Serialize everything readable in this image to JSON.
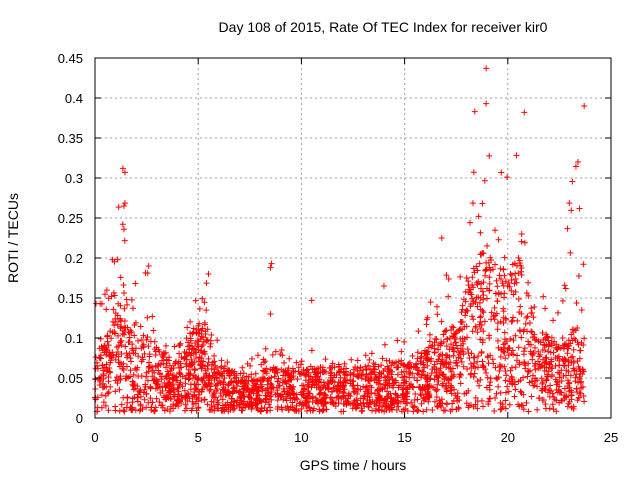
{
  "chart_data": {
    "type": "scatter",
    "title": "Day 108 of 2015, Rate Of TEC Index for receiver kir0",
    "xlabel": "GPS time / hours",
    "ylabel": "ROTI / TECUs",
    "xlim": [
      0,
      25
    ],
    "ylim": [
      0,
      0.45
    ],
    "xticks": [
      0,
      5,
      10,
      15,
      20,
      25
    ],
    "yticks": [
      0,
      0.05,
      0.1,
      0.15,
      0.2,
      0.25,
      0.3,
      0.35,
      0.4,
      0.45
    ],
    "xtick_labels": [
      "0",
      "5",
      "10",
      "15",
      "20",
      "25"
    ],
    "ytick_labels": [
      "0",
      "0.05",
      "0.1",
      "0.15",
      "0.2",
      "0.25",
      "0.3",
      "0.35",
      "0.4",
      "0.45"
    ],
    "grid": true,
    "marker": "+",
    "color": "#ff0000",
    "series": [
      {
        "name": "ROTI",
        "envelope": [
          {
            "x": 0.0,
            "base": 0.045,
            "max": 0.14
          },
          {
            "x": 0.5,
            "base": 0.055,
            "max": 0.16
          },
          {
            "x": 1.0,
            "base": 0.08,
            "max": 0.24
          },
          {
            "x": 1.4,
            "base": 0.1,
            "max": 0.31
          },
          {
            "x": 1.8,
            "base": 0.07,
            "max": 0.18
          },
          {
            "x": 2.5,
            "base": 0.06,
            "max": 0.19
          },
          {
            "x": 3.0,
            "base": 0.05,
            "max": 0.13
          },
          {
            "x": 3.5,
            "base": 0.045,
            "max": 0.12
          },
          {
            "x": 4.0,
            "base": 0.04,
            "max": 0.1
          },
          {
            "x": 4.5,
            "base": 0.055,
            "max": 0.13
          },
          {
            "x": 5.0,
            "base": 0.07,
            "max": 0.16
          },
          {
            "x": 5.5,
            "base": 0.07,
            "max": 0.18
          },
          {
            "x": 6.0,
            "base": 0.035,
            "max": 0.09
          },
          {
            "x": 7.0,
            "base": 0.03,
            "max": 0.07
          },
          {
            "x": 8.5,
            "base": 0.035,
            "max": 0.09
          },
          {
            "x": 10.0,
            "base": 0.035,
            "max": 0.09
          },
          {
            "x": 11.0,
            "base": 0.035,
            "max": 0.08
          },
          {
            "x": 12.0,
            "base": 0.035,
            "max": 0.08
          },
          {
            "x": 13.0,
            "base": 0.035,
            "max": 0.08
          },
          {
            "x": 14.0,
            "base": 0.04,
            "max": 0.1
          },
          {
            "x": 15.0,
            "base": 0.04,
            "max": 0.1
          },
          {
            "x": 16.0,
            "base": 0.05,
            "max": 0.12
          },
          {
            "x": 16.7,
            "base": 0.06,
            "max": 0.2
          },
          {
            "x": 17.5,
            "base": 0.07,
            "max": 0.16
          },
          {
            "x": 18.0,
            "base": 0.1,
            "max": 0.3
          },
          {
            "x": 18.5,
            "base": 0.12,
            "max": 0.35
          },
          {
            "x": 19.0,
            "base": 0.13,
            "max": 0.37
          },
          {
            "x": 19.5,
            "base": 0.11,
            "max": 0.3
          },
          {
            "x": 20.0,
            "base": 0.12,
            "max": 0.33
          },
          {
            "x": 20.5,
            "base": 0.13,
            "max": 0.34
          },
          {
            "x": 21.0,
            "base": 0.09,
            "max": 0.2
          },
          {
            "x": 21.5,
            "base": 0.07,
            "max": 0.18
          },
          {
            "x": 22.0,
            "base": 0.06,
            "max": 0.16
          },
          {
            "x": 22.5,
            "base": 0.05,
            "max": 0.15
          },
          {
            "x": 23.0,
            "base": 0.06,
            "max": 0.28
          },
          {
            "x": 23.3,
            "base": 0.07,
            "max": 0.32
          },
          {
            "x": 23.7,
            "base": 0.05,
            "max": 0.2
          }
        ],
        "notable_points": [
          {
            "x": 0.05,
            "y": 0.143
          },
          {
            "x": 0.25,
            "y": 0.143
          },
          {
            "x": 1.35,
            "y": 0.312
          },
          {
            "x": 1.45,
            "y": 0.307
          },
          {
            "x": 1.4,
            "y": 0.265
          },
          {
            "x": 2.6,
            "y": 0.19
          },
          {
            "x": 5.5,
            "y": 0.18
          },
          {
            "x": 8.55,
            "y": 0.193
          },
          {
            "x": 8.5,
            "y": 0.188
          },
          {
            "x": 8.5,
            "y": 0.13
          },
          {
            "x": 10.5,
            "y": 0.147
          },
          {
            "x": 14.0,
            "y": 0.165
          },
          {
            "x": 16.8,
            "y": 0.225
          },
          {
            "x": 18.4,
            "y": 0.383
          },
          {
            "x": 18.95,
            "y": 0.437
          },
          {
            "x": 18.95,
            "y": 0.393
          },
          {
            "x": 20.8,
            "y": 0.382
          },
          {
            "x": 23.7,
            "y": 0.39
          },
          {
            "x": 23.4,
            "y": 0.32
          }
        ]
      }
    ]
  }
}
